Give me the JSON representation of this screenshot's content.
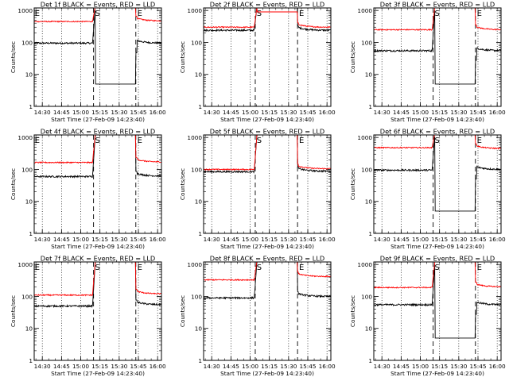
{
  "figure": {
    "background": "#ffffff",
    "event_color": "#000000",
    "lld_color": "#ff0000"
  },
  "chart_data": [
    {
      "type": "line",
      "detector": "1f",
      "title": "Det 1f BLACK = Events, RED = LLD",
      "xlabel": "Start Time (27-Feb-09 14:23:40)",
      "ylabel": "Counts/sec",
      "xticks": [
        "14:30",
        "14:45",
        "15:00",
        "15:15",
        "15:30",
        "15:45",
        "16:00"
      ],
      "yticks": [
        "1",
        "10",
        "100",
        "1000"
      ],
      "yscale": "log",
      "ylim": [
        1,
        1200
      ],
      "markers": [
        {
          "label": "E",
          "time": "14:23"
        },
        {
          "label": "S",
          "time": "15:10"
        },
        {
          "label": "E",
          "time": "15:43"
        }
      ],
      "series": [
        {
          "name": "Events",
          "color": "#000000",
          "pre_level": 95,
          "post_level": 95,
          "spike": 5
        },
        {
          "name": "LLD",
          "color": "#ff0000",
          "pre_level": 450,
          "post_level": 470,
          "spike": 0
        }
      ]
    },
    {
      "type": "line",
      "detector": "2f",
      "title": "Det 2f BLACK = Events, RED = LLD",
      "xlabel": "Start Time (27-Feb-09 14:23:40)",
      "ylabel": "Counts/sec",
      "xticks": [
        "14:30",
        "14:45",
        "15:00",
        "15:15",
        "15:30",
        "15:45",
        "16:00"
      ],
      "yticks": [
        "1",
        "10",
        "100",
        "1000"
      ],
      "yscale": "log",
      "ylim": [
        1,
        1200
      ],
      "markers": [
        {
          "label": "S",
          "time": "15:04"
        },
        {
          "label": "E",
          "time": "15:37"
        }
      ],
      "series": [
        {
          "name": "Events",
          "color": "#000000",
          "pre_level": 240,
          "post_level": 240,
          "spike": 0
        },
        {
          "name": "LLD",
          "color": "#ff0000",
          "pre_level": 300,
          "post_level": 300,
          "spike": 900
        }
      ]
    },
    {
      "type": "line",
      "detector": "3f",
      "title": "Det 3f BLACK = Events, RED = LLD",
      "xlabel": "Start Time (27-Feb-09 14:23:40)",
      "ylabel": "Counts/sec",
      "xticks": [
        "14:30",
        "14:45",
        "15:00",
        "15:15",
        "15:30",
        "15:45",
        "16:00"
      ],
      "yticks": [
        "1",
        "10",
        "100",
        "1000"
      ],
      "yscale": "log",
      "ylim": [
        1,
        1200
      ],
      "markers": [
        {
          "label": "S",
          "time": "15:10"
        },
        {
          "label": "E",
          "time": "15:43"
        }
      ],
      "series": [
        {
          "name": "Events",
          "color": "#000000",
          "pre_level": 55,
          "post_level": 55,
          "spike": 5
        },
        {
          "name": "LLD",
          "color": "#ff0000",
          "pre_level": 250,
          "post_level": 250,
          "spike": 0
        }
      ]
    },
    {
      "type": "line",
      "detector": "4f",
      "title": "Det 4f BLACK = Events, RED = LLD",
      "xlabel": "Start Time (27-Feb-09 14:23:40)",
      "ylabel": "Counts/sec",
      "xticks": [
        "14:30",
        "14:45",
        "15:00",
        "15:15",
        "15:30",
        "15:45",
        "16:00"
      ],
      "yticks": [
        "1",
        "10",
        "100",
        "1000"
      ],
      "yscale": "log",
      "ylim": [
        1,
        1200
      ],
      "markers": [
        {
          "label": "E",
          "time": "14:23"
        },
        {
          "label": "S",
          "time": "15:10"
        },
        {
          "label": "E",
          "time": "15:43"
        }
      ],
      "series": [
        {
          "name": "Events",
          "color": "#000000",
          "pre_level": 60,
          "post_level": 62,
          "spike": 0
        },
        {
          "name": "LLD",
          "color": "#ff0000",
          "pre_level": 165,
          "post_level": 170,
          "spike": 0
        }
      ]
    },
    {
      "type": "line",
      "detector": "5f",
      "title": "Det 5f BLACK = Events, RED = LLD",
      "xlabel": "Start Time (27-Feb-09 14:23:40)",
      "ylabel": "Counts/sec",
      "xticks": [
        "14:30",
        "14:45",
        "15:00",
        "15:15",
        "15:30",
        "15:45",
        "16:00"
      ],
      "yticks": [
        "1",
        "10",
        "100",
        "1000"
      ],
      "yscale": "log",
      "ylim": [
        1,
        1200
      ],
      "markers": [
        {
          "label": "S",
          "time": "15:04"
        },
        {
          "label": "E",
          "time": "15:37"
        }
      ],
      "series": [
        {
          "name": "Events",
          "color": "#000000",
          "pre_level": 85,
          "post_level": 88,
          "spike": 0
        },
        {
          "name": "LLD",
          "color": "#ff0000",
          "pre_level": 100,
          "post_level": 105,
          "spike": 0
        }
      ]
    },
    {
      "type": "line",
      "detector": "6f",
      "title": "Det 6f BLACK = Events, RED = LLD",
      "xlabel": "Start Time (27-Feb-09 14:23:40)",
      "ylabel": "Counts/sec",
      "xticks": [
        "14:30",
        "14:45",
        "15:00",
        "15:15",
        "15:30",
        "15:45",
        "16:00"
      ],
      "yticks": [
        "1",
        "10",
        "100",
        "1000"
      ],
      "yscale": "log",
      "ylim": [
        1,
        1200
      ],
      "markers": [
        {
          "label": "S",
          "time": "15:10"
        },
        {
          "label": "E",
          "time": "15:43"
        }
      ],
      "series": [
        {
          "name": "Events",
          "color": "#000000",
          "pre_level": 95,
          "post_level": 100,
          "spike": 5
        },
        {
          "name": "LLD",
          "color": "#ff0000",
          "pre_level": 480,
          "post_level": 450,
          "spike": 0
        }
      ]
    },
    {
      "type": "line",
      "detector": "7f",
      "title": "Det 7f BLACK = Events, RED = LLD",
      "xlabel": "Start Time (27-Feb-09 14:23:40)",
      "ylabel": "Counts/sec",
      "xticks": [
        "14:30",
        "14:45",
        "15:00",
        "15:15",
        "15:30",
        "15:45",
        "16:00"
      ],
      "yticks": [
        "1",
        "10",
        "100",
        "1000"
      ],
      "yscale": "log",
      "ylim": [
        1,
        1200
      ],
      "markers": [
        {
          "label": "E",
          "time": "14:23"
        },
        {
          "label": "S",
          "time": "15:10"
        },
        {
          "label": "E",
          "time": "15:43"
        }
      ],
      "series": [
        {
          "name": "Events",
          "color": "#000000",
          "pre_level": 50,
          "post_level": 55,
          "spike": 0
        },
        {
          "name": "LLD",
          "color": "#ff0000",
          "pre_level": 110,
          "post_level": 120,
          "spike": 0
        }
      ]
    },
    {
      "type": "line",
      "detector": "8f",
      "title": "Det 8f BLACK = Events, RED = LLD",
      "xlabel": "Start Time (27-Feb-09 14:23:40)",
      "ylabel": "Counts/sec",
      "xticks": [
        "14:30",
        "14:45",
        "15:00",
        "15:15",
        "15:30",
        "15:45",
        "16:00"
      ],
      "yticks": [
        "1",
        "10",
        "100",
        "1000"
      ],
      "yscale": "log",
      "ylim": [
        1,
        1200
      ],
      "markers": [
        {
          "label": "S",
          "time": "15:04"
        },
        {
          "label": "E",
          "time": "15:37"
        }
      ],
      "series": [
        {
          "name": "Events",
          "color": "#000000",
          "pre_level": 90,
          "post_level": 100,
          "spike": 0
        },
        {
          "name": "LLD",
          "color": "#ff0000",
          "pre_level": 330,
          "post_level": 420,
          "spike": 0
        }
      ]
    },
    {
      "type": "line",
      "detector": "9f",
      "title": "Det 9f BLACK = Events, RED = LLD",
      "xlabel": "Start Time (27-Feb-09 14:23:40)",
      "ylabel": "Counts/sec",
      "xticks": [
        "14:30",
        "14:45",
        "15:00",
        "15:15",
        "15:30",
        "15:45",
        "16:00"
      ],
      "yticks": [
        "1",
        "10",
        "100",
        "1000"
      ],
      "yscale": "log",
      "ylim": [
        1,
        1200
      ],
      "markers": [
        {
          "label": "S",
          "time": "15:10"
        },
        {
          "label": "E",
          "time": "15:43"
        }
      ],
      "series": [
        {
          "name": "Events",
          "color": "#000000",
          "pre_level": 55,
          "post_level": 55,
          "spike": 5
        },
        {
          "name": "LLD",
          "color": "#ff0000",
          "pre_level": 190,
          "post_level": 200,
          "spike": 0
        }
      ]
    }
  ]
}
